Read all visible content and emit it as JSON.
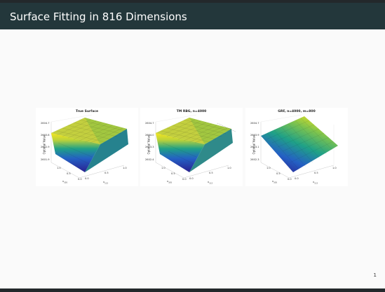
{
  "slide": {
    "title": "Surface Fitting in 816 Dimensions",
    "page_number": "1"
  },
  "panels": [
    {
      "title": "True Surface",
      "ylabel": "Optimal Value",
      "zticks": [
        "2604.7",
        "2603.8",
        "2602.9",
        "2601.9"
      ],
      "xlabel": "x",
      "xlabel_sub": "305",
      "zlabel": "x",
      "zlabel_sub": "112",
      "ticks_x": [
        "0.0",
        "0.5",
        "1.0"
      ],
      "ticks_y": [
        "0.0",
        "0.5",
        "1.0"
      ]
    },
    {
      "title": "TM RBG, n=4000",
      "ylabel": "Optimal Value",
      "zticks": [
        "2604.7",
        "2604.0",
        "2603.3",
        "2602.4"
      ],
      "xlabel": "x",
      "xlabel_sub": "305",
      "zlabel": "x",
      "zlabel_sub": "112",
      "ticks_x": [
        "0.0",
        "0.5",
        "1.0"
      ],
      "ticks_y": [
        "0.0",
        "0.5",
        "1.0"
      ]
    },
    {
      "title": "GRF, n=4000, m=800",
      "ylabel": "Optimal Value",
      "zticks": [
        "2604.7",
        "2603.9",
        "2603.1",
        "2602.3"
      ],
      "xlabel": "x",
      "xlabel_sub": "305",
      "zlabel": "x",
      "zlabel_sub": "112",
      "ticks_x": [
        "0.0",
        "0.5",
        "1.0"
      ],
      "ticks_y": [
        "0.0",
        "0.5",
        "1.0"
      ]
    }
  ],
  "colors": {
    "header": "#23373b",
    "surface_low": "#2a1f8f",
    "surface_mid": "#1fa187",
    "surface_high": "#f4e61e"
  }
}
